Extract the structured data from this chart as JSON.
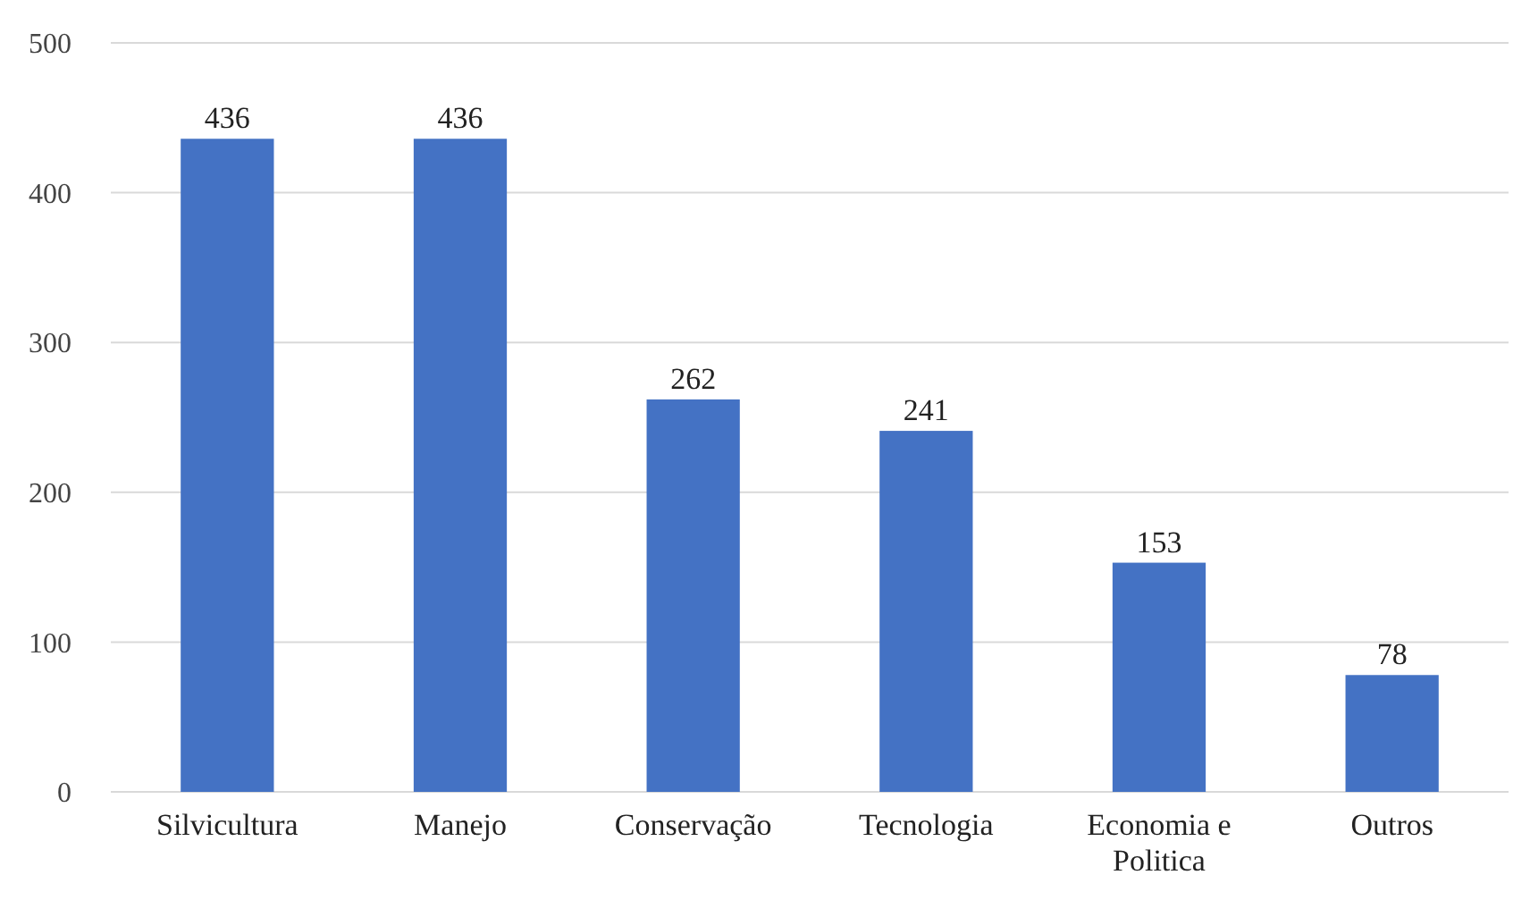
{
  "chart_data": {
    "type": "bar",
    "categories": [
      "Silvicultura",
      "Manejo",
      "Conservação",
      "Tecnologia",
      "Economia e Politica",
      "Outros"
    ],
    "values": [
      436,
      436,
      262,
      241,
      153,
      78
    ],
    "color": "#4472c4",
    "ylim": [
      0,
      500
    ],
    "yticks": [
      0,
      100,
      200,
      300,
      400,
      500
    ],
    "grid": "y",
    "data_labels": true
  }
}
